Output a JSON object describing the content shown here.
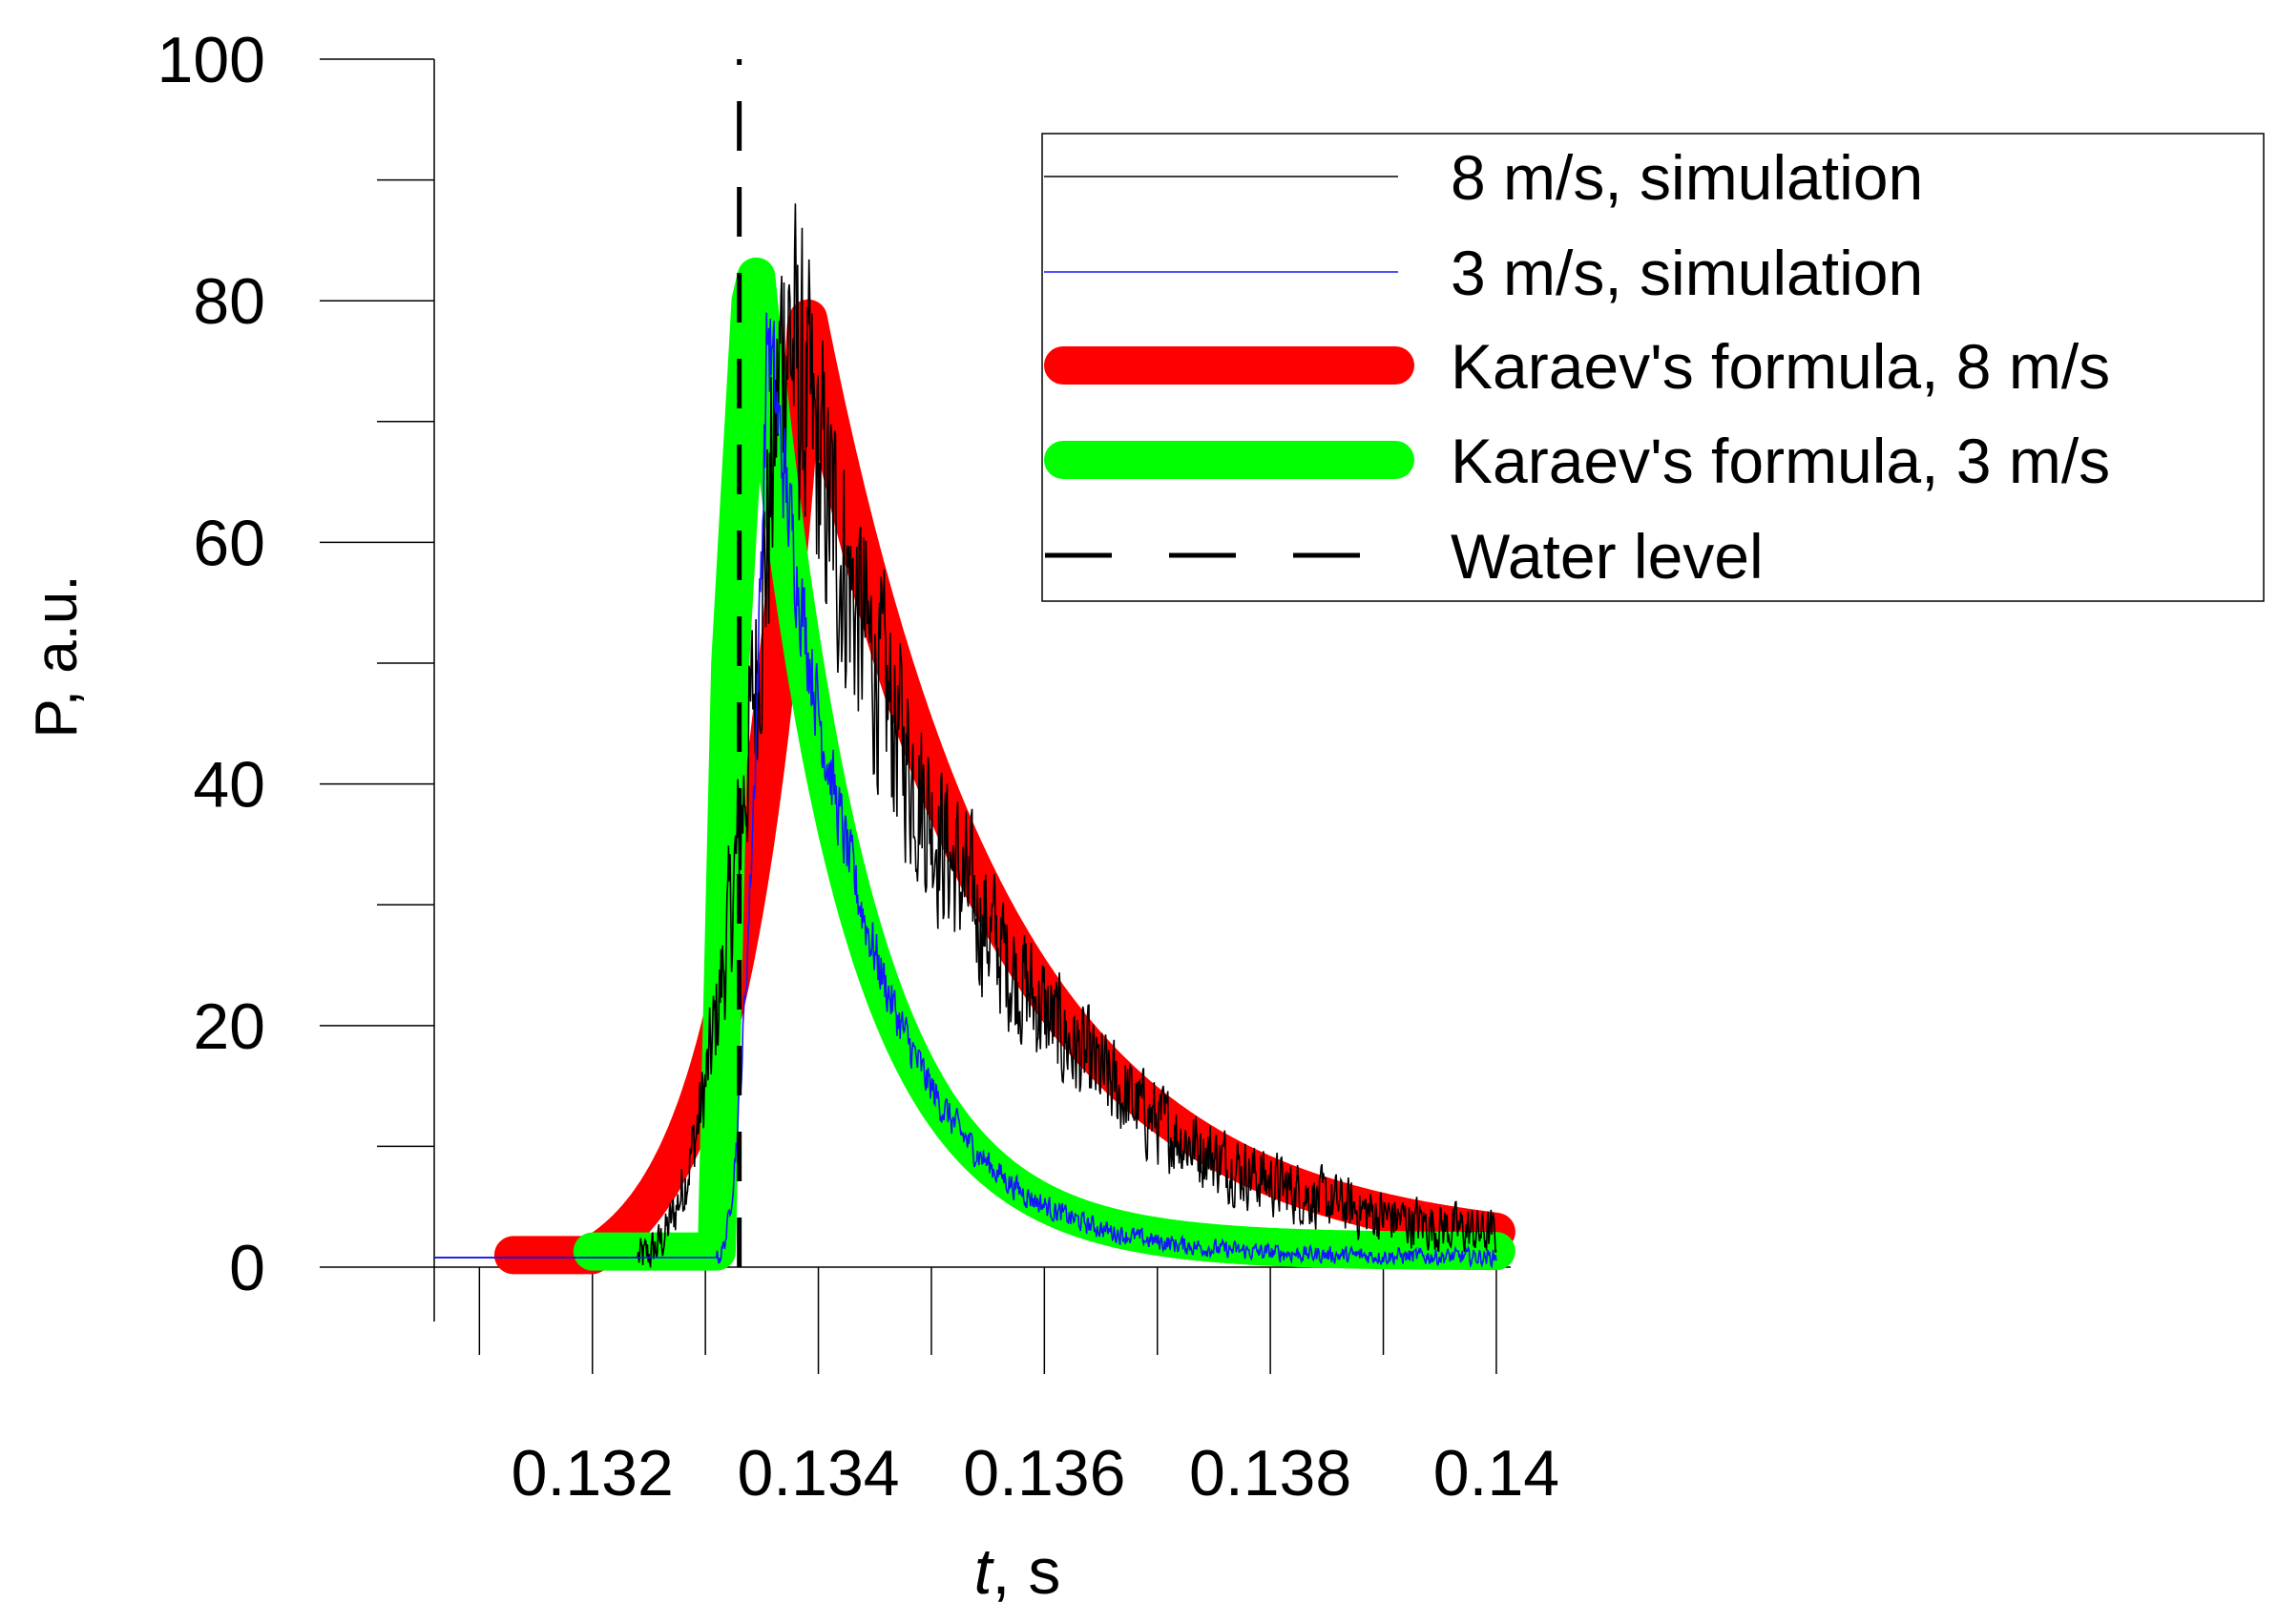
{
  "chart_data": {
    "type": "line",
    "title": "",
    "xlabel_italic": "t",
    "xlabel_rest": ", s",
    "ylabel": "P, a.u.",
    "xlim": [
      0.1306,
      0.1412
    ],
    "ylim": [
      -4.5,
      100
    ],
    "x_ticks": [
      0.132,
      0.134,
      0.136,
      0.138,
      0.14
    ],
    "x_tick_labels": [
      "0.132",
      "0.134",
      "0.136",
      "0.138",
      "0.14"
    ],
    "x_minor_ticks": [
      0.131,
      0.133,
      0.135,
      0.137,
      0.139
    ],
    "y_ticks": [
      0,
      20,
      40,
      60,
      80,
      100
    ],
    "y_tick_labels": [
      "0",
      "20",
      "40",
      "60",
      "80",
      "100"
    ],
    "y_minor_ticks": [
      10,
      30,
      50,
      70,
      90
    ],
    "legend_position": "top-right",
    "series": [
      {
        "name": "8 m/s, simulation",
        "color": "#000000",
        "style": "thin-noisy",
        "t0": 0.1324,
        "t_peak": 0.1337,
        "peak": 79,
        "tau_rise": 0.0004,
        "t_end": 0.14,
        "decay_tau": 0.0017,
        "base": 0.8,
        "noise": 3.5
      },
      {
        "name": "3 m/s, simulation",
        "color": "#1515ff",
        "style": "thin-noisy",
        "t0": 0.1331,
        "t_peak": 0.13355,
        "peak": 78,
        "tau_rise": 0.00015,
        "t_end": 0.14,
        "decay_tau": 0.00085,
        "base": 0.8,
        "noise": 1.4
      },
      {
        "name": "Karaev's formula, 8 m/s",
        "color": "#ff0000",
        "style": "thick",
        "t_start": 0.1313,
        "t0": 0.132,
        "t_peak": 0.1339,
        "peak": 79,
        "tau_rise": 0.0004,
        "t_end": 0.14,
        "decay_tau": 0.00165,
        "base": 1.0
      },
      {
        "name": "Karaev's formula, 3 m/s",
        "color": "#00ff00",
        "style": "thick",
        "t_start": 0.132,
        "t_flat": 0.1331,
        "t_peak": 0.13345,
        "peak": 82,
        "t_end": 0.14,
        "decay_tau": 0.00085,
        "base": 1.3
      },
      {
        "name": "Water level",
        "color": "#000000",
        "style": "dashed",
        "x": 0.1333,
        "y_range": [
          0,
          100
        ]
      }
    ]
  }
}
